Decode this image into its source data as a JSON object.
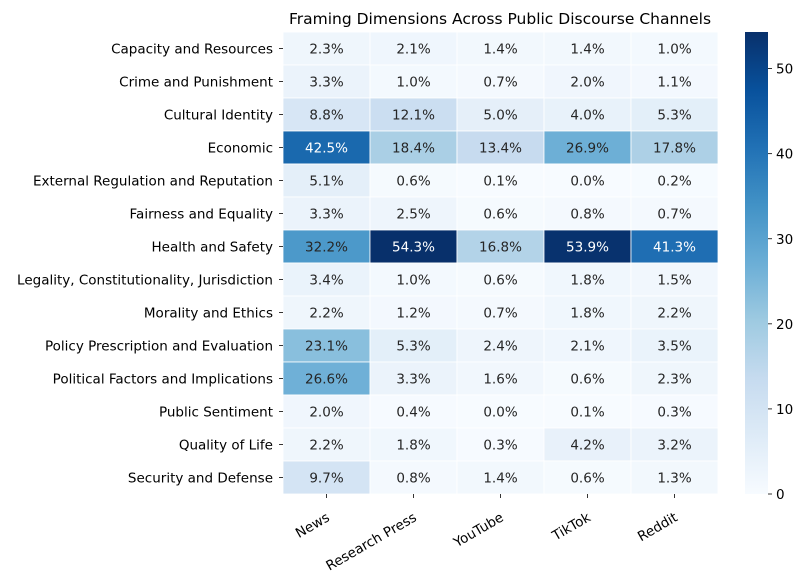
{
  "chart_data": {
    "type": "heatmap",
    "title": "Framing Dimensions Across Public Discourse Channels",
    "columns": [
      "News",
      "Research Press",
      "YouTube",
      "TikTok",
      "Reddit"
    ],
    "rows": [
      "Capacity and Resources",
      "Crime and Punishment",
      "Cultural Identity",
      "Economic",
      "External Regulation and Reputation",
      "Fairness and Equality",
      "Health and Safety",
      "Legality, Constitutionality, Jurisdiction",
      "Morality and Ethics",
      "Policy Prescription and Evaluation",
      "Political Factors and Implications",
      "Public Sentiment",
      "Quality of Life",
      "Security and Defense"
    ],
    "values": [
      [
        2.3,
        2.1,
        1.4,
        1.4,
        1.0
      ],
      [
        3.3,
        1.0,
        0.7,
        2.0,
        1.1
      ],
      [
        8.8,
        12.1,
        5.0,
        4.0,
        5.3
      ],
      [
        42.5,
        18.4,
        13.4,
        26.9,
        17.8
      ],
      [
        5.1,
        0.6,
        0.1,
        0.0,
        0.2
      ],
      [
        3.3,
        2.5,
        0.6,
        0.8,
        0.7
      ],
      [
        32.2,
        54.3,
        16.8,
        53.9,
        41.3
      ],
      [
        3.4,
        1.0,
        0.6,
        1.8,
        1.5
      ],
      [
        2.2,
        1.2,
        0.7,
        1.8,
        2.2
      ],
      [
        23.1,
        5.3,
        2.4,
        2.1,
        3.5
      ],
      [
        26.6,
        3.3,
        1.6,
        0.6,
        2.3
      ],
      [
        2.0,
        0.4,
        0.0,
        0.1,
        0.3
      ],
      [
        2.2,
        1.8,
        0.3,
        4.2,
        3.2
      ],
      [
        9.7,
        0.8,
        1.4,
        0.6,
        1.3
      ]
    ],
    "value_suffix": "%",
    "colorbar": {
      "min": 0,
      "max": 54.3,
      "ticks": [
        0,
        10,
        20,
        30,
        40,
        50
      ],
      "colormap": "Blues"
    }
  }
}
